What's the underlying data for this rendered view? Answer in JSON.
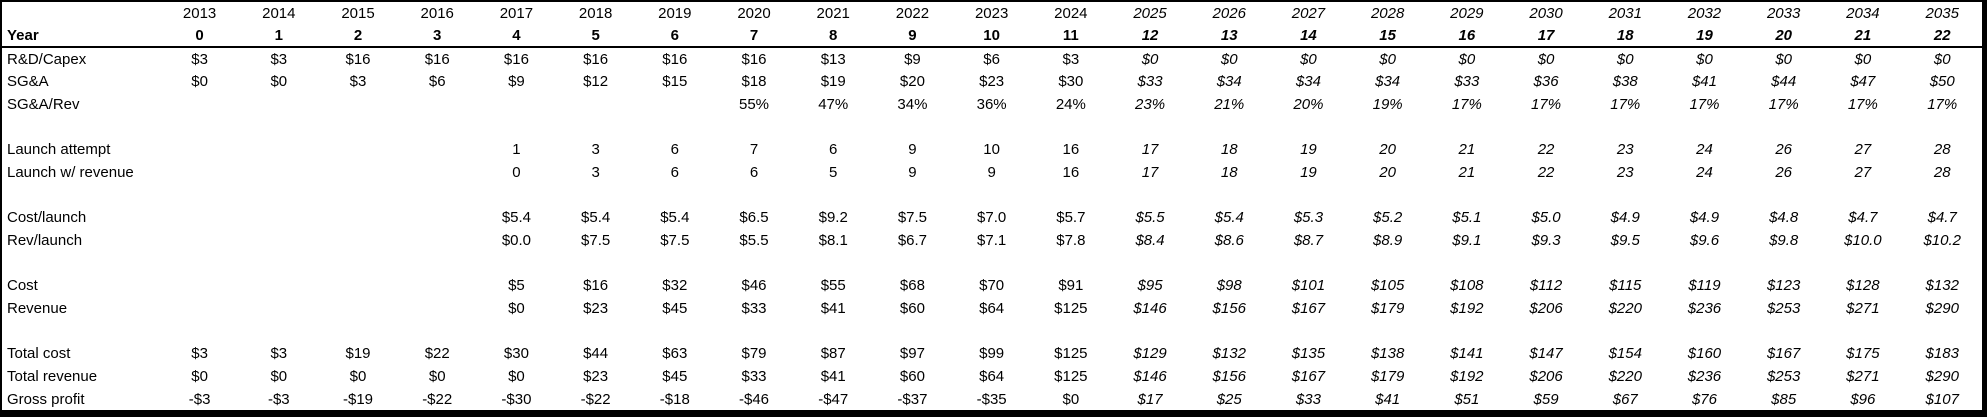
{
  "styles": {
    "text_color": "#000000",
    "background_color": "#ffffff",
    "border_color": "#000000"
  },
  "chart_data": {
    "type": "table",
    "row_header_label": "Year",
    "forecast_start_col": 12,
    "columns_years": [
      "2013",
      "2014",
      "2015",
      "2016",
      "2017",
      "2018",
      "2019",
      "2020",
      "2021",
      "2022",
      "2023",
      "2024",
      "2025",
      "2026",
      "2027",
      "2028",
      "2029",
      "2030",
      "2031",
      "2032",
      "2033",
      "2034",
      "2035"
    ],
    "columns_year_index": [
      "0",
      "1",
      "2",
      "3",
      "4",
      "5",
      "6",
      "7",
      "8",
      "9",
      "10",
      "11",
      "12",
      "13",
      "14",
      "15",
      "16",
      "17",
      "18",
      "19",
      "20",
      "21",
      "22"
    ],
    "rows": [
      {
        "label": "R&D/Capex",
        "values": [
          "$3",
          "$3",
          "$16",
          "$16",
          "$16",
          "$16",
          "$16",
          "$16",
          "$13",
          "$9",
          "$6",
          "$3",
          "$0",
          "$0",
          "$0",
          "$0",
          "$0",
          "$0",
          "$0",
          "$0",
          "$0",
          "$0",
          "$0"
        ]
      },
      {
        "label": "SG&A",
        "values": [
          "$0",
          "$0",
          "$3",
          "$6",
          "$9",
          "$12",
          "$15",
          "$18",
          "$19",
          "$20",
          "$23",
          "$30",
          "$33",
          "$34",
          "$34",
          "$34",
          "$33",
          "$36",
          "$38",
          "$41",
          "$44",
          "$47",
          "$50"
        ]
      },
      {
        "label": "SG&A/Rev",
        "values": [
          "",
          "",
          "",
          "",
          "",
          "",
          "",
          "55%",
          "47%",
          "34%",
          "36%",
          "24%",
          "23%",
          "21%",
          "20%",
          "19%",
          "17%",
          "17%",
          "17%",
          "17%",
          "17%",
          "17%",
          "17%"
        ]
      },
      {
        "label": "",
        "values": [
          "",
          "",
          "",
          "",
          "",
          "",
          "",
          "",
          "",
          "",
          "",
          "",
          "",
          "",
          "",
          "",
          "",
          "",
          "",
          "",
          "",
          "",
          ""
        ]
      },
      {
        "label": "Launch attempt",
        "values": [
          "",
          "",
          "",
          "",
          "1",
          "3",
          "6",
          "7",
          "6",
          "9",
          "10",
          "16",
          "17",
          "18",
          "19",
          "20",
          "21",
          "22",
          "23",
          "24",
          "26",
          "27",
          "28"
        ]
      },
      {
        "label": "Launch w/ revenue",
        "values": [
          "",
          "",
          "",
          "",
          "0",
          "3",
          "6",
          "6",
          "5",
          "9",
          "9",
          "16",
          "17",
          "18",
          "19",
          "20",
          "21",
          "22",
          "23",
          "24",
          "26",
          "27",
          "28"
        ]
      },
      {
        "label": "",
        "values": [
          "",
          "",
          "",
          "",
          "",
          "",
          "",
          "",
          "",
          "",
          "",
          "",
          "",
          "",
          "",
          "",
          "",
          "",
          "",
          "",
          "",
          "",
          ""
        ]
      },
      {
        "label": "Cost/launch",
        "values": [
          "",
          "",
          "",
          "",
          "$5.4",
          "$5.4",
          "$5.4",
          "$6.5",
          "$9.2",
          "$7.5",
          "$7.0",
          "$5.7",
          "$5.5",
          "$5.4",
          "$5.3",
          "$5.2",
          "$5.1",
          "$5.0",
          "$4.9",
          "$4.9",
          "$4.8",
          "$4.7",
          "$4.7"
        ]
      },
      {
        "label": "Rev/launch",
        "values": [
          "",
          "",
          "",
          "",
          "$0.0",
          "$7.5",
          "$7.5",
          "$5.5",
          "$8.1",
          "$6.7",
          "$7.1",
          "$7.8",
          "$8.4",
          "$8.6",
          "$8.7",
          "$8.9",
          "$9.1",
          "$9.3",
          "$9.5",
          "$9.6",
          "$9.8",
          "$10.0",
          "$10.2"
        ]
      },
      {
        "label": "",
        "values": [
          "",
          "",
          "",
          "",
          "",
          "",
          "",
          "",
          "",
          "",
          "",
          "",
          "",
          "",
          "",
          "",
          "",
          "",
          "",
          "",
          "",
          "",
          ""
        ]
      },
      {
        "label": "Cost",
        "values": [
          "",
          "",
          "",
          "",
          "$5",
          "$16",
          "$32",
          "$46",
          "$55",
          "$68",
          "$70",
          "$91",
          "$95",
          "$98",
          "$101",
          "$105",
          "$108",
          "$112",
          "$115",
          "$119",
          "$123",
          "$128",
          "$132"
        ]
      },
      {
        "label": "Revenue",
        "values": [
          "",
          "",
          "",
          "",
          "$0",
          "$23",
          "$45",
          "$33",
          "$41",
          "$60",
          "$64",
          "$125",
          "$146",
          "$156",
          "$167",
          "$179",
          "$192",
          "$206",
          "$220",
          "$236",
          "$253",
          "$271",
          "$290"
        ]
      },
      {
        "label": "",
        "values": [
          "",
          "",
          "",
          "",
          "",
          "",
          "",
          "",
          "",
          "",
          "",
          "",
          "",
          "",
          "",
          "",
          "",
          "",
          "",
          "",
          "",
          "",
          ""
        ]
      },
      {
        "label": "Total cost",
        "values": [
          "$3",
          "$3",
          "$19",
          "$22",
          "$30",
          "$44",
          "$63",
          "$79",
          "$87",
          "$97",
          "$99",
          "$125",
          "$129",
          "$132",
          "$135",
          "$138",
          "$141",
          "$147",
          "$154",
          "$160",
          "$167",
          "$175",
          "$183"
        ]
      },
      {
        "label": "Total revenue",
        "values": [
          "$0",
          "$0",
          "$0",
          "$0",
          "$0",
          "$23",
          "$45",
          "$33",
          "$41",
          "$60",
          "$64",
          "$125",
          "$146",
          "$156",
          "$167",
          "$179",
          "$192",
          "$206",
          "$220",
          "$236",
          "$253",
          "$271",
          "$290"
        ]
      },
      {
        "label": "Gross profit",
        "values": [
          "-$3",
          "-$3",
          "-$19",
          "-$22",
          "-$30",
          "-$22",
          "-$18",
          "-$46",
          "-$47",
          "-$37",
          "-$35",
          "$0",
          "$17",
          "$25",
          "$33",
          "$41",
          "$51",
          "$59",
          "$67",
          "$76",
          "$85",
          "$96",
          "$107"
        ]
      }
    ]
  }
}
